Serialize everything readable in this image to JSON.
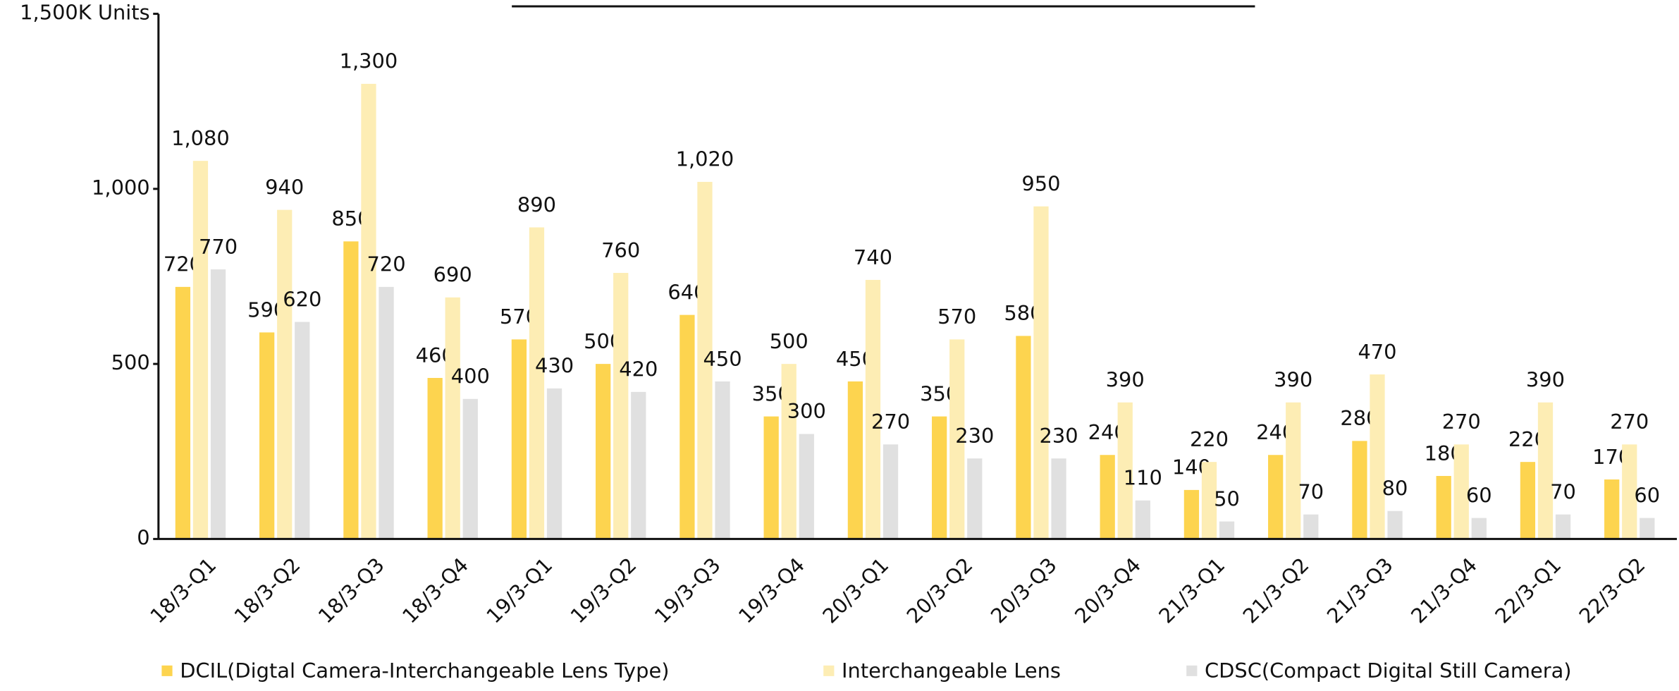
{
  "chart_data": {
    "type": "bar",
    "categories": [
      "18/3-Q1",
      "18/3-Q2",
      "18/3-Q3",
      "18/3-Q4",
      "19/3-Q1",
      "19/3-Q2",
      "19/3-Q3",
      "19/3-Q4",
      "20/3-Q1",
      "20/3-Q2",
      "20/3-Q3",
      "20/3-Q4",
      "21/3-Q1",
      "21/3-Q2",
      "21/3-Q3",
      "21/3-Q4",
      "22/3-Q1",
      "22/3-Q2"
    ],
    "series": [
      {
        "name": "DCIL(Digtal Camera-Interchangeable Lens Type)",
        "color": "#fdd44f",
        "values": [
          720,
          590,
          850,
          460,
          570,
          500,
          640,
          350,
          450,
          350,
          580,
          240,
          140,
          240,
          280,
          180,
          220,
          170
        ]
      },
      {
        "name": "Interchangeable Lens",
        "color": "#fdedb4",
        "values": [
          1080,
          940,
          1300,
          690,
          890,
          760,
          1020,
          500,
          740,
          570,
          950,
          390,
          220,
          390,
          470,
          270,
          390,
          270
        ],
        "value_labels": [
          "1,080",
          "940",
          "1,300",
          "690",
          "890",
          "760",
          "1,020",
          "500",
          "740",
          "570",
          "950",
          "390",
          "220",
          "390",
          "470",
          "270",
          "390",
          "270"
        ]
      },
      {
        "name": "CDSC(Compact Digital Still Camera)",
        "color": "#e0e0e0",
        "values": [
          770,
          620,
          720,
          400,
          430,
          420,
          450,
          300,
          270,
          230,
          230,
          110,
          50,
          70,
          80,
          60,
          70,
          60
        ]
      }
    ],
    "ylim": [
      0,
      1500
    ],
    "yticks": [
      0,
      500,
      {
        "value": 1000,
        "label": "1,000"
      },
      {
        "value": 1500,
        "label": "1,500K Units"
      }
    ]
  }
}
